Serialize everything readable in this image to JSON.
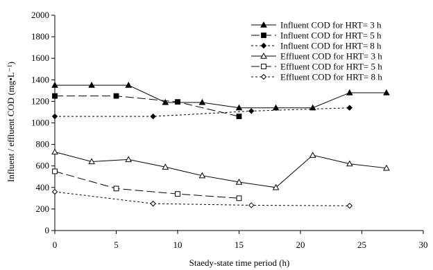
{
  "chart_data": {
    "type": "line",
    "title": "",
    "xlabel": "Staedy-state time period (h)",
    "ylabel": "Influent / effluent COD (mg•L⁻¹)",
    "xlim": [
      0,
      30
    ],
    "ylim": [
      0,
      2000
    ],
    "xticks": [
      0,
      5,
      10,
      15,
      20,
      25,
      30
    ],
    "yticks": [
      0,
      200,
      400,
      600,
      800,
      1000,
      1200,
      1400,
      1600,
      1800,
      2000
    ],
    "grid": false,
    "legend_position": "top-right",
    "series": [
      {
        "name": "Influent COD for HRT= 3 h",
        "x": [
          0,
          3,
          6,
          9,
          12,
          15,
          18,
          21,
          24,
          27
        ],
        "y": [
          1350,
          1350,
          1350,
          1190,
          1190,
          1140,
          1140,
          1140,
          1280,
          1280
        ],
        "marker": "triangle",
        "fill": "filled",
        "dash": "solid"
      },
      {
        "name": "Influent COD for HRT= 5 h",
        "x": [
          0,
          5,
          10,
          15
        ],
        "y": [
          1250,
          1250,
          1195,
          1060
        ],
        "marker": "square",
        "fill": "filled",
        "dash": "longdash"
      },
      {
        "name": "Influent COD for HRT= 8 h",
        "x": [
          0,
          8,
          16,
          24
        ],
        "y": [
          1060,
          1060,
          1110,
          1140
        ],
        "marker": "diamond",
        "fill": "filled",
        "dash": "dotted"
      },
      {
        "name": "Effluent COD for HRT= 3 h",
        "x": [
          0,
          3,
          6,
          9,
          12,
          15,
          18,
          21,
          24,
          27
        ],
        "y": [
          730,
          640,
          660,
          590,
          510,
          450,
          400,
          700,
          620,
          580
        ],
        "marker": "triangle",
        "fill": "open",
        "dash": "solid"
      },
      {
        "name": "Effluent COD for HRT= 5 h",
        "x": [
          0,
          5,
          10,
          15
        ],
        "y": [
          550,
          390,
          340,
          300
        ],
        "marker": "square",
        "fill": "open",
        "dash": "longdash"
      },
      {
        "name": "Effluent COD for HRT= 8 h",
        "x": [
          0,
          8,
          16,
          24
        ],
        "y": [
          360,
          250,
          235,
          230
        ],
        "marker": "diamond",
        "fill": "open",
        "dash": "dotted"
      }
    ]
  }
}
